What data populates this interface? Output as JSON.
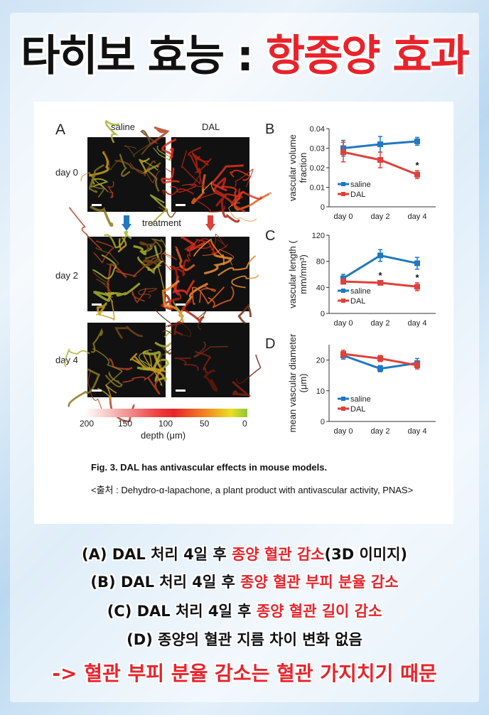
{
  "headline": {
    "part1": "타히보 효능 : ",
    "part2": "항종양 효과"
  },
  "figure": {
    "panel_A": "A",
    "col_saline": "saline",
    "col_dal": "DAL",
    "row_day0": "day 0",
    "row_day2": "day 2",
    "row_day4": "day 4",
    "treatment": "treatment",
    "colorbar_ticks": [
      "200",
      "150",
      "100",
      "50",
      "0"
    ],
    "colorbar_label": "depth (μm)",
    "caption_title": "Fig. 3. DAL has antivascular effects in mouse models.",
    "caption_source": "<출처 : Dehydro-α-lapachone, a plant product with antivascular activity, PNAS>"
  },
  "colors": {
    "saline": "#1f78c1",
    "dal": "#e0403a",
    "accent_red": "#e8232b"
  },
  "chart_data": [
    {
      "panel": "B",
      "type": "line",
      "categories": [
        "day 0",
        "day 2",
        "day 4"
      ],
      "ylabel": "vascular volume fraction",
      "ylim": [
        0,
        0.04
      ],
      "yticks": [
        "0",
        "0.01",
        "0.02",
        "0.03",
        "0.04"
      ],
      "series": [
        {
          "name": "saline",
          "values": [
            0.03,
            0.032,
            0.0335
          ],
          "err": [
            0.004,
            0.004,
            0.002
          ]
        },
        {
          "name": "DAL",
          "values": [
            0.028,
            0.024,
            0.0165
          ],
          "err": [
            0.005,
            0.004,
            0.002
          ]
        }
      ],
      "annotations": [
        {
          "x": "day 4",
          "text": "*"
        }
      ]
    },
    {
      "panel": "C",
      "type": "line",
      "categories": [
        "day 0",
        "day 2",
        "day 4"
      ],
      "ylabel": "vascular length ( mm/mm³)",
      "ylim": [
        0,
        120
      ],
      "yticks": [
        "0",
        "40",
        "80",
        "120"
      ],
      "series": [
        {
          "name": "saline",
          "values": [
            54,
            89,
            77
          ],
          "err": [
            6,
            9,
            9
          ]
        },
        {
          "name": "DAL",
          "values": [
            49,
            47,
            41
          ],
          "err": [
            4,
            3,
            6
          ]
        }
      ],
      "annotations": [
        {
          "x": "day 2",
          "text": "*"
        },
        {
          "x": "day 4",
          "text": "*"
        }
      ]
    },
    {
      "panel": "D",
      "type": "line",
      "categories": [
        "day 0",
        "day 2",
        "day 4"
      ],
      "ylabel": "mean vascular diameter (μm)",
      "ylim": [
        0,
        25
      ],
      "yticks": [
        "0",
        "10",
        "20"
      ],
      "series": [
        {
          "name": "saline",
          "values": [
            21.5,
            17.2,
            19.0
          ],
          "err": [
            1.2,
            1.0,
            1.5
          ]
        },
        {
          "name": "DAL",
          "values": [
            22.0,
            20.5,
            18.3
          ],
          "err": [
            1.2,
            1.0,
            1.2
          ]
        }
      ],
      "annotations": []
    }
  ],
  "summary": {
    "a_pre": "(A) DAL 처리 4일 후 ",
    "a_hl": "종양 혈관 감소",
    "a_post": "(3D 이미지)",
    "b_pre": "(B) DAL 처리 4일 후 ",
    "b_hl": "종양 혈관 부피 분율 감소",
    "c_pre": "(C) DAL 처리 4일 후 ",
    "c_hl": "종양 혈관 길이 감소",
    "d": "(D) 종양의 혈관 지름 차이 변화 없음",
    "conclusion": "-> 혈관 부피 분율 감소는 혈관 가지치기 때문"
  }
}
